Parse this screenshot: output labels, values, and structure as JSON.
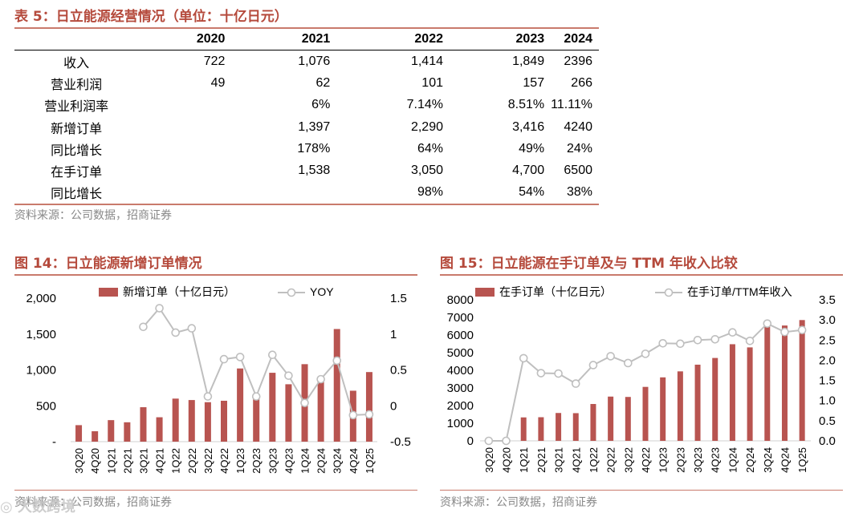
{
  "table": {
    "title": "表 5：日立能源经营情况（单位：十亿日元）",
    "header": [
      "",
      "2020",
      "2021",
      "2022",
      "2023",
      "2024"
    ],
    "rows": [
      [
        "收入",
        "722",
        "1,076",
        "1,414",
        "1,849",
        "2396"
      ],
      [
        "营业利润",
        "49",
        "62",
        "101",
        "157",
        "266"
      ],
      [
        "营业利润率",
        "",
        "6%",
        "7.14%",
        "8.51%",
        "11.11%"
      ],
      [
        "新增订单",
        "",
        "1,397",
        "2,290",
        "3,416",
        "4240"
      ],
      [
        "同比增长",
        "",
        "178%",
        "64%",
        "49%",
        "24%"
      ],
      [
        "在手订单",
        "",
        "1,538",
        "3,050",
        "4,700",
        "6500"
      ],
      [
        "同比增长",
        "",
        "",
        "98%",
        "54%",
        "38%"
      ]
    ],
    "source": "资料来源：公司数据，招商证券"
  },
  "fig14": {
    "title": "图 14：日立能源新增订单情况",
    "source": "资料来源：公司数据，招商证券"
  },
  "fig15": {
    "title": "图 15：日立能源在手订单及与 TTM 年收入比较",
    "source": "资料来源：公司数据，招商证券"
  },
  "watermark": "◎ 大数跨境",
  "colors": {
    "bar": "#b85450",
    "line": "#bfbfbf",
    "accent": "#b54a3c"
  },
  "chart_data": [
    {
      "type": "bar+line",
      "title": "图 14：日立能源新增订单情况",
      "categories": [
        "3Q20",
        "4Q20",
        "1Q21",
        "2Q21",
        "3Q21",
        "4Q21",
        "1Q22",
        "2Q22",
        "3Q22",
        "4Q22",
        "1Q23",
        "2Q23",
        "3Q23",
        "4Q23",
        "1Q24",
        "2Q24",
        "3Q24",
        "4Q24",
        "1Q25"
      ],
      "series": [
        {
          "name": "新增订单（十亿日元）",
          "kind": "bar",
          "axis": "left",
          "values": [
            230,
            145,
            300,
            270,
            480,
            340,
            600,
            580,
            550,
            570,
            1020,
            620,
            960,
            800,
            1080,
            840,
            1570,
            710,
            970
          ]
        },
        {
          "name": "YOY",
          "kind": "line",
          "axis": "right",
          "values": [
            null,
            null,
            null,
            null,
            1.1,
            1.36,
            1.02,
            1.08,
            0.13,
            0.65,
            0.68,
            0.13,
            0.71,
            0.42,
            0.04,
            0.37,
            0.63,
            -0.13,
            -0.12
          ]
        }
      ],
      "left_axis": {
        "ticks": [
          "-",
          "500",
          "1,000",
          "1,500",
          "2,000"
        ],
        "min": 0,
        "max": 2000
      },
      "right_axis": {
        "ticks": [
          "-0.5",
          "0",
          "0.5",
          "1",
          "1.5"
        ],
        "min": -0.5,
        "max": 1.5
      }
    },
    {
      "type": "bar+line",
      "title": "图 15：日立能源在手订单及与 TTM 年收入比较",
      "categories": [
        "3Q20",
        "4Q20",
        "1Q21",
        "2Q21",
        "3Q21",
        "4Q21",
        "1Q22",
        "2Q22",
        "3Q22",
        "4Q22",
        "1Q23",
        "2Q23",
        "3Q23",
        "4Q23",
        "1Q24",
        "2Q24",
        "3Q24",
        "4Q24",
        "1Q25"
      ],
      "series": [
        {
          "name": "在手订单（十亿日元）",
          "kind": "bar",
          "axis": "left",
          "values": [
            0,
            0,
            1330,
            1340,
            1580,
            1570,
            2090,
            2510,
            2490,
            3060,
            3600,
            3940,
            4320,
            4700,
            5480,
            5300,
            6650,
            6540,
            6850
          ]
        },
        {
          "name": "在手订单/TTM年收入",
          "kind": "line",
          "axis": "right",
          "values": [
            0,
            0,
            2.05,
            1.68,
            1.67,
            1.42,
            1.88,
            2.1,
            1.93,
            2.16,
            2.42,
            2.41,
            2.5,
            2.52,
            2.69,
            2.48,
            2.91,
            2.7,
            2.75
          ]
        }
      ],
      "left_axis": {
        "ticks": [
          "0",
          "1000",
          "2000",
          "3000",
          "4000",
          "5000",
          "6000",
          "7000",
          "8000"
        ],
        "min": 0,
        "max": 8000
      },
      "right_axis": {
        "ticks": [
          "0.0",
          "0.5",
          "1.0",
          "1.5",
          "2.0",
          "2.5",
          "3.0",
          "3.5"
        ],
        "min": 0,
        "max": 3.5
      }
    }
  ]
}
